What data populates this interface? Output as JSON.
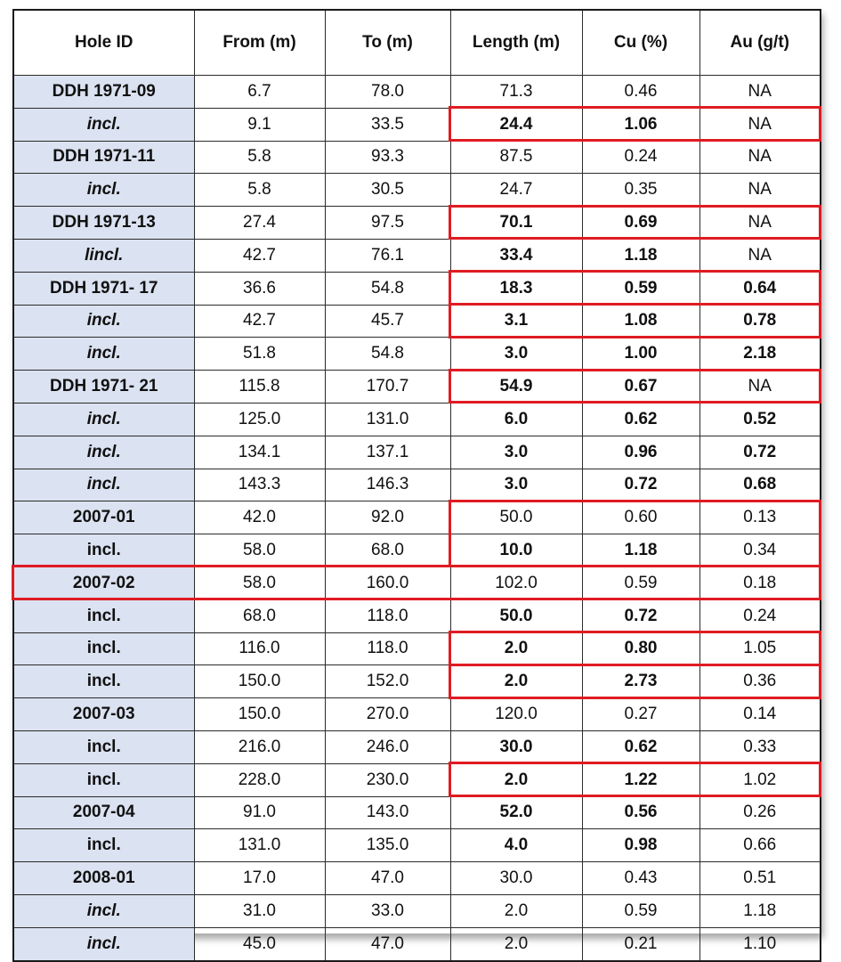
{
  "columns": [
    "Hole ID",
    "From (m)",
    "To (m)",
    "Length (m)",
    "Cu (%)",
    "Au (g/t)"
  ],
  "rows": [
    {
      "hole": "DDH 1971-09",
      "italic": false,
      "from": "6.7",
      "to": "78.0",
      "length": "71.3",
      "cu": "0.46",
      "au": "NA",
      "bold": []
    },
    {
      "hole": "incl.",
      "italic": true,
      "from": "9.1",
      "to": "33.5",
      "length": "24.4",
      "cu": "1.06",
      "au": "NA",
      "bold": [
        "length",
        "cu"
      ]
    },
    {
      "hole": "DDH 1971-11",
      "italic": false,
      "from": "5.8",
      "to": "93.3",
      "length": "87.5",
      "cu": "0.24",
      "au": "NA",
      "bold": []
    },
    {
      "hole": "incl.",
      "italic": true,
      "from": "5.8",
      "to": "30.5",
      "length": "24.7",
      "cu": "0.35",
      "au": "NA",
      "bold": []
    },
    {
      "hole": "DDH 1971-13",
      "italic": false,
      "from": "27.4",
      "to": "97.5",
      "length": "70.1",
      "cu": "0.69",
      "au": "NA",
      "bold": [
        "length",
        "cu"
      ]
    },
    {
      "hole": "lincl.",
      "italic": true,
      "from": "42.7",
      "to": "76.1",
      "length": "33.4",
      "cu": "1.18",
      "au": "NA",
      "bold": [
        "length",
        "cu"
      ]
    },
    {
      "hole": "DDH 1971- 17",
      "italic": false,
      "from": "36.6",
      "to": "54.8",
      "length": "18.3",
      "cu": "0.59",
      "au": "0.64",
      "bold": [
        "length",
        "cu",
        "au"
      ]
    },
    {
      "hole": "incl.",
      "italic": true,
      "from": "42.7",
      "to": "45.7",
      "length": "3.1",
      "cu": "1.08",
      "au": "0.78",
      "bold": [
        "length",
        "cu",
        "au"
      ]
    },
    {
      "hole": "incl.",
      "italic": true,
      "from": "51.8",
      "to": "54.8",
      "length": "3.0",
      "cu": "1.00",
      "au": "2.18",
      "bold": [
        "length",
        "cu",
        "au"
      ]
    },
    {
      "hole": "DDH 1971- 21",
      "italic": false,
      "from": "115.8",
      "to": "170.7",
      "length": "54.9",
      "cu": "0.67",
      "au": "NA",
      "bold": [
        "length",
        "cu"
      ]
    },
    {
      "hole": "incl.",
      "italic": true,
      "from": "125.0",
      "to": "131.0",
      "length": "6.0",
      "cu": "0.62",
      "au": "0.52",
      "bold": [
        "length",
        "cu",
        "au"
      ]
    },
    {
      "hole": "incl.",
      "italic": true,
      "from": "134.1",
      "to": "137.1",
      "length": "3.0",
      "cu": "0.96",
      "au": "0.72",
      "bold": [
        "length",
        "cu",
        "au"
      ]
    },
    {
      "hole": "incl.",
      "italic": true,
      "from": "143.3",
      "to": "146.3",
      "length": "3.0",
      "cu": "0.72",
      "au": "0.68",
      "bold": [
        "length",
        "cu",
        "au"
      ]
    },
    {
      "hole": "2007-01",
      "italic": false,
      "from": "42.0",
      "to": "92.0",
      "length": "50.0",
      "cu": "0.60",
      "au": "0.13",
      "bold": []
    },
    {
      "hole": "incl.",
      "italic": false,
      "from": "58.0",
      "to": "68.0",
      "length": "10.0",
      "cu": "1.18",
      "au": "0.34",
      "bold": [
        "length",
        "cu"
      ]
    },
    {
      "hole": "2007-02",
      "italic": false,
      "from": "58.0",
      "to": "160.0",
      "length": "102.0",
      "cu": "0.59",
      "au": "0.18",
      "bold": []
    },
    {
      "hole": "incl.",
      "italic": false,
      "from": "68.0",
      "to": "118.0",
      "length": "50.0",
      "cu": "0.72",
      "au": "0.24",
      "bold": [
        "length",
        "cu"
      ]
    },
    {
      "hole": "incl.",
      "italic": false,
      "from": "116.0",
      "to": "118.0",
      "length": "2.0",
      "cu": "0.80",
      "au": "1.05",
      "bold": [
        "length",
        "cu"
      ]
    },
    {
      "hole": "incl.",
      "italic": false,
      "from": "150.0",
      "to": "152.0",
      "length": "2.0",
      "cu": "2.73",
      "au": "0.36",
      "bold": [
        "length",
        "cu"
      ]
    },
    {
      "hole": "2007-03",
      "italic": false,
      "from": "150.0",
      "to": "270.0",
      "length": "120.0",
      "cu": "0.27",
      "au": "0.14",
      "bold": []
    },
    {
      "hole": "incl.",
      "italic": false,
      "from": "216.0",
      "to": "246.0",
      "length": "30.0",
      "cu": "0.62",
      "au": "0.33",
      "bold": [
        "length",
        "cu"
      ]
    },
    {
      "hole": "incl.",
      "italic": false,
      "from": "228.0",
      "to": "230.0",
      "length": "2.0",
      "cu": "1.22",
      "au": "1.02",
      "bold": [
        "length",
        "cu"
      ]
    },
    {
      "hole": "2007-04",
      "italic": false,
      "from": "91.0",
      "to": "143.0",
      "length": "52.0",
      "cu": "0.56",
      "au": "0.26",
      "bold": [
        "length",
        "cu"
      ]
    },
    {
      "hole": "incl.",
      "italic": false,
      "from": "131.0",
      "to": "135.0",
      "length": "4.0",
      "cu": "0.98",
      "au": "0.66",
      "bold": [
        "length",
        "cu"
      ]
    },
    {
      "hole": "2008-01",
      "italic": false,
      "from": "17.0",
      "to": "47.0",
      "length": "30.0",
      "cu": "0.43",
      "au": "0.51",
      "bold": []
    },
    {
      "hole": "incl.",
      "italic": true,
      "from": "31.0",
      "to": "33.0",
      "length": "2.0",
      "cu": "0.59",
      "au": "1.18",
      "bold": []
    },
    {
      "hole": "incl.",
      "italic": true,
      "from": "45.0",
      "to": "47.0",
      "length": "2.0",
      "cu": "0.21",
      "au": "1.10",
      "bold": []
    }
  ],
  "colors": {
    "hole_id_fill": "#dbe2f1",
    "highlight_box": "#e01b22",
    "grid": "#2b2b2b"
  },
  "highlight_boxes": [
    {
      "row": 1,
      "cells": [
        "length",
        "cu",
        "au"
      ]
    },
    {
      "row": 4,
      "cells": [
        "length",
        "cu",
        "au"
      ]
    },
    {
      "row": 6,
      "cells": [
        "length",
        "cu",
        "au"
      ]
    },
    {
      "row": 7,
      "cells": [
        "length",
        "cu",
        "au"
      ]
    },
    {
      "row": 9,
      "cells": [
        "length",
        "cu",
        "au"
      ]
    },
    {
      "row": 13,
      "cells": [
        "length",
        "cu",
        "au"
      ],
      "span_rows": 2
    },
    {
      "row": 15,
      "cells": [
        "hole",
        "from",
        "to",
        "length",
        "cu",
        "au"
      ]
    },
    {
      "row": 17,
      "cells": [
        "length",
        "cu",
        "au"
      ]
    },
    {
      "row": 18,
      "cells": [
        "length",
        "cu",
        "au"
      ]
    },
    {
      "row": 21,
      "cells": [
        "length",
        "cu",
        "au"
      ]
    }
  ]
}
